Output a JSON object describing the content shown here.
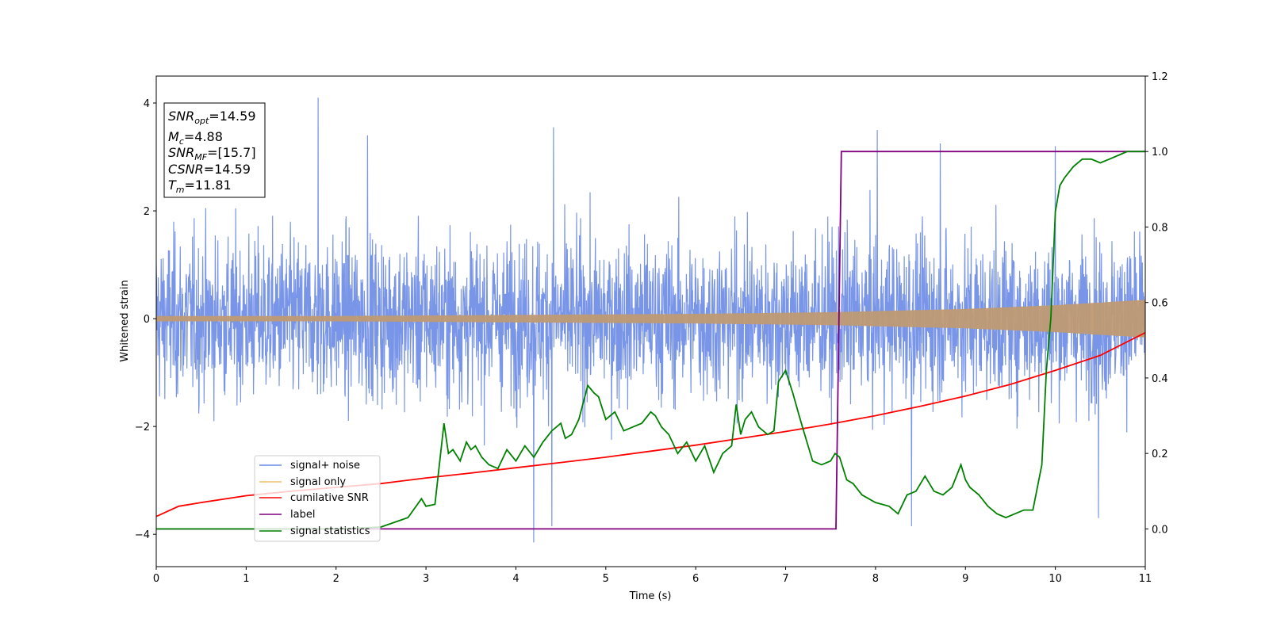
{
  "chart_data": {
    "type": "line",
    "xlabel": "Time (s)",
    "ylabel": "Whitened strain",
    "xlim": [
      0,
      11
    ],
    "ylim_left": [
      -4.6,
      4.5
    ],
    "ylim_right": [
      -0.1,
      1.2
    ],
    "x_ticks": [
      "0",
      "1",
      "2",
      "3",
      "4",
      "5",
      "6",
      "7",
      "8",
      "9",
      "10",
      "11"
    ],
    "y_left_ticks": [
      "4",
      "2",
      "0",
      "−2",
      "−4"
    ],
    "y_left_tick_values": [
      4,
      2,
      0,
      -2,
      -4
    ],
    "y_right_ticks": [
      "1.2",
      "1.0",
      "0.8",
      "0.6",
      "0.4",
      "0.2",
      "0.0"
    ],
    "y_right_tick_values": [
      1.2,
      1.0,
      0.8,
      0.6,
      0.4,
      0.2,
      0.0
    ],
    "info_box": {
      "snr_opt_base": "SNR",
      "snr_opt_sub": "opt",
      "snr_opt_value": "=14.59",
      "mc_base": "M",
      "mc_sub": "c",
      "mc_value": "=4.88",
      "snr_mf_base": "SNR",
      "snr_mf_sub": "MF",
      "snr_mf_value": "=[15.7]",
      "csnr_base": "CSNR",
      "csnr_value": "=14.59",
      "tm_base": "T",
      "tm_sub": "m",
      "tm_value": "=11.81"
    },
    "legend": {
      "placement": "lower-left",
      "entries": [
        "signal+ noise",
        "signal only",
        "cumilative SNR",
        "label",
        "signal statistics"
      ]
    },
    "series": [
      {
        "name": "signal+ noise",
        "axis": "left",
        "color": "#6a8ae6",
        "description_values": "noise band",
        "typical_range": [
          -2.3,
          2.3
        ],
        "spikes": [
          [
            1.8,
            4.1
          ],
          [
            2.35,
            3.4
          ],
          [
            4.2,
            -4.15
          ],
          [
            4.42,
            3.55
          ],
          [
            8.02,
            3.5
          ],
          [
            8.72,
            3.25
          ],
          [
            10.0,
            3.2
          ],
          [
            8.4,
            -3.85
          ],
          [
            4.4,
            -3.85
          ],
          [
            10.48,
            -3.7
          ]
        ]
      },
      {
        "name": "signal only",
        "axis": "left",
        "color": "#f0c070",
        "envelope": [
          [
            0,
            0.05
          ],
          [
            2,
            0.05
          ],
          [
            4,
            0.07
          ],
          [
            6,
            0.09
          ],
          [
            7.5,
            0.12
          ],
          [
            9,
            0.18
          ],
          [
            10,
            0.25
          ],
          [
            11,
            0.35
          ]
        ]
      },
      {
        "name": "cumilative SNR",
        "axis": "right",
        "color": "#ff0000",
        "x": [
          0,
          0.25,
          0.5,
          1,
          1.5,
          2,
          2.5,
          3,
          3.5,
          4,
          4.5,
          5,
          5.5,
          6,
          6.5,
          7,
          7.5,
          8,
          8.5,
          9,
          9.5,
          10,
          10.5,
          11
        ],
        "y": [
          0.033,
          0.06,
          0.07,
          0.088,
          0.1,
          0.11,
          0.12,
          0.135,
          0.148,
          0.162,
          0.176,
          0.19,
          0.206,
          0.222,
          0.24,
          0.258,
          0.278,
          0.3,
          0.325,
          0.352,
          0.383,
          0.42,
          0.46,
          0.52
        ]
      },
      {
        "name": "label",
        "axis": "right",
        "color": "#800080",
        "x": [
          0,
          7.56,
          7.62,
          11
        ],
        "y": [
          0.0,
          0.0,
          1.0,
          1.0
        ]
      },
      {
        "name": "signal statistics",
        "axis": "right",
        "color": "#008000",
        "x": [
          0,
          1,
          2,
          2.5,
          2.8,
          2.95,
          3.0,
          3.1,
          3.2,
          3.25,
          3.3,
          3.38,
          3.45,
          3.5,
          3.55,
          3.62,
          3.7,
          3.8,
          3.9,
          4.0,
          4.1,
          4.2,
          4.3,
          4.4,
          4.5,
          4.55,
          4.62,
          4.7,
          4.8,
          4.87,
          4.92,
          5.0,
          5.1,
          5.2,
          5.3,
          5.4,
          5.5,
          5.55,
          5.62,
          5.7,
          5.8,
          5.9,
          6.0,
          6.1,
          6.2,
          6.3,
          6.4,
          6.45,
          6.5,
          6.55,
          6.62,
          6.7,
          6.8,
          6.87,
          6.92,
          7.0,
          7.08,
          7.15,
          7.2,
          7.3,
          7.4,
          7.5,
          7.55,
          7.6,
          7.68,
          7.75,
          7.85,
          8.0,
          8.15,
          8.25,
          8.35,
          8.45,
          8.55,
          8.65,
          8.75,
          8.85,
          8.95,
          9.0,
          9.05,
          9.15,
          9.25,
          9.35,
          9.45,
          9.55,
          9.65,
          9.75,
          9.85,
          9.9,
          9.95,
          10.0,
          10.05,
          10.1,
          10.2,
          10.3,
          10.4,
          10.5,
          10.6,
          10.7,
          10.8,
          11.0
        ],
        "y": [
          0.0,
          0.0,
          0.0,
          0.005,
          0.03,
          0.08,
          0.06,
          0.065,
          0.28,
          0.2,
          0.21,
          0.18,
          0.23,
          0.21,
          0.22,
          0.19,
          0.17,
          0.16,
          0.21,
          0.18,
          0.22,
          0.19,
          0.23,
          0.26,
          0.28,
          0.24,
          0.25,
          0.29,
          0.38,
          0.36,
          0.35,
          0.29,
          0.31,
          0.26,
          0.27,
          0.28,
          0.31,
          0.3,
          0.27,
          0.25,
          0.2,
          0.23,
          0.18,
          0.22,
          0.15,
          0.2,
          0.22,
          0.33,
          0.25,
          0.29,
          0.31,
          0.27,
          0.25,
          0.26,
          0.39,
          0.42,
          0.36,
          0.3,
          0.26,
          0.18,
          0.17,
          0.18,
          0.2,
          0.19,
          0.13,
          0.12,
          0.09,
          0.07,
          0.06,
          0.04,
          0.09,
          0.1,
          0.14,
          0.1,
          0.09,
          0.11,
          0.17,
          0.13,
          0.11,
          0.09,
          0.06,
          0.04,
          0.03,
          0.04,
          0.05,
          0.05,
          0.17,
          0.42,
          0.56,
          0.84,
          0.91,
          0.93,
          0.96,
          0.98,
          0.98,
          0.97,
          0.98,
          0.99,
          1.0,
          1.0
        ]
      }
    ]
  },
  "colors": {
    "noise": "#6a8ae6",
    "signal": "#f0c070",
    "signal_overlap": "#bf9a73",
    "cumulative_snr": "#ff0000",
    "label": "#800080",
    "statistics": "#008000"
  }
}
